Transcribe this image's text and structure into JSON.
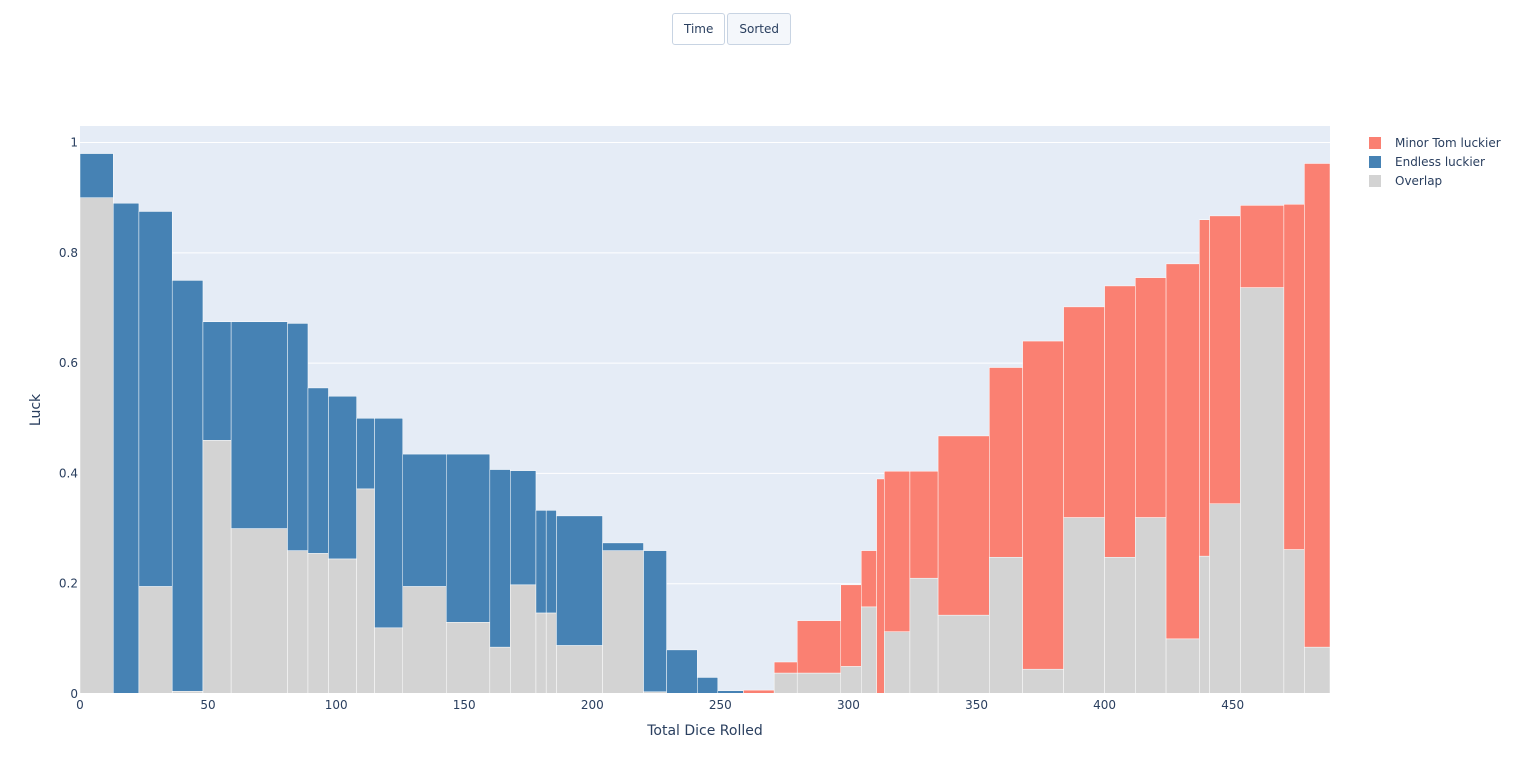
{
  "buttons": {
    "time": "Time",
    "sorted": "Sorted",
    "active": "sorted"
  },
  "colors": {
    "minor": "#fa8072",
    "endless": "#4682b4",
    "overlap": "#d3d3d3",
    "plot_bg": "#e5ecf6",
    "grid": "#ffffff"
  },
  "legend": [
    {
      "label": "Minor Tom luckier",
      "color": "#fa8072"
    },
    {
      "label": "Endless luckier",
      "color": "#4682b4"
    },
    {
      "label": "Overlap",
      "color": "#d3d3d3"
    }
  ],
  "chart_data": {
    "type": "bar",
    "xlabel": "Total Dice Rolled",
    "ylabel": "Luck",
    "xlim": [
      0,
      488
    ],
    "ylim": [
      0,
      1.03
    ],
    "xticks": [
      0,
      50,
      100,
      150,
      200,
      250,
      300,
      350,
      400,
      450
    ],
    "yticks": [
      0,
      0.2,
      0.4,
      0.6,
      0.8,
      1
    ],
    "ytick_labels": [
      "0",
      "0.2",
      "0.4",
      "0.6",
      "0.8",
      "1"
    ],
    "grid": true,
    "legend_position": "top-right",
    "segments": [
      {
        "x0": 0,
        "x1": 13,
        "overlap": 0.9,
        "top": 0.98,
        "winner": "Endless luckier"
      },
      {
        "x0": 13,
        "x1": 23,
        "overlap": 0.0,
        "top": 0.89,
        "winner": "Endless luckier"
      },
      {
        "x0": 23,
        "x1": 36,
        "overlap": 0.195,
        "top": 0.875,
        "winner": "Endless luckier"
      },
      {
        "x0": 36,
        "x1": 48,
        "overlap": 0.005,
        "top": 0.75,
        "winner": "Endless luckier"
      },
      {
        "x0": 48,
        "x1": 59,
        "overlap": 0.46,
        "top": 0.675,
        "winner": "Endless luckier"
      },
      {
        "x0": 59,
        "x1": 81,
        "overlap": 0.3,
        "top": 0.675,
        "winner": "Endless luckier"
      },
      {
        "x0": 81,
        "x1": 89,
        "overlap": 0.26,
        "top": 0.672,
        "winner": "Endless luckier"
      },
      {
        "x0": 89,
        "x1": 97,
        "overlap": 0.255,
        "top": 0.555,
        "winner": "Endless luckier"
      },
      {
        "x0": 97,
        "x1": 108,
        "overlap": 0.245,
        "top": 0.54,
        "winner": "Endless luckier"
      },
      {
        "x0": 108,
        "x1": 115,
        "overlap": 0.372,
        "top": 0.5,
        "winner": "Endless luckier"
      },
      {
        "x0": 115,
        "x1": 126,
        "overlap": 0.12,
        "top": 0.5,
        "winner": "Endless luckier"
      },
      {
        "x0": 126,
        "x1": 143,
        "overlap": 0.195,
        "top": 0.435,
        "winner": "Endless luckier"
      },
      {
        "x0": 143,
        "x1": 160,
        "overlap": 0.13,
        "top": 0.435,
        "winner": "Endless luckier"
      },
      {
        "x0": 160,
        "x1": 168,
        "overlap": 0.085,
        "top": 0.407,
        "winner": "Endless luckier"
      },
      {
        "x0": 168,
        "x1": 178,
        "overlap": 0.198,
        "top": 0.405,
        "winner": "Endless luckier"
      },
      {
        "x0": 178,
        "x1": 182,
        "overlap": 0.147,
        "top": 0.333,
        "winner": "Endless luckier"
      },
      {
        "x0": 182,
        "x1": 186,
        "overlap": 0.147,
        "top": 0.333,
        "winner": "Endless luckier"
      },
      {
        "x0": 186,
        "x1": 204,
        "overlap": 0.088,
        "top": 0.323,
        "winner": "Endless luckier"
      },
      {
        "x0": 204,
        "x1": 220,
        "overlap": 0.26,
        "top": 0.274,
        "winner": "Endless luckier"
      },
      {
        "x0": 220,
        "x1": 229,
        "overlap": 0.004,
        "top": 0.26,
        "winner": "Endless luckier"
      },
      {
        "x0": 229,
        "x1": 241,
        "overlap": 0.0,
        "top": 0.08,
        "winner": "Endless luckier"
      },
      {
        "x0": 241,
        "x1": 249,
        "overlap": 0.0,
        "top": 0.03,
        "winner": "Endless luckier"
      },
      {
        "x0": 249,
        "x1": 259,
        "overlap": 0.0,
        "top": 0.006,
        "winner": "Endless luckier"
      },
      {
        "x0": 259,
        "x1": 271,
        "overlap": 0.0,
        "top": 0.007,
        "winner": "Minor Tom luckier"
      },
      {
        "x0": 271,
        "x1": 280,
        "overlap": 0.038,
        "top": 0.058,
        "winner": "Minor Tom luckier"
      },
      {
        "x0": 280,
        "x1": 297,
        "overlap": 0.038,
        "top": 0.133,
        "winner": "Minor Tom luckier"
      },
      {
        "x0": 297,
        "x1": 305,
        "overlap": 0.05,
        "top": 0.198,
        "winner": "Minor Tom luckier"
      },
      {
        "x0": 305,
        "x1": 311,
        "overlap": 0.158,
        "top": 0.26,
        "winner": "Minor Tom luckier"
      },
      {
        "x0": 311,
        "x1": 314,
        "overlap": 0.0,
        "top": 0.39,
        "winner": "Minor Tom luckier"
      },
      {
        "x0": 314,
        "x1": 324,
        "overlap": 0.113,
        "top": 0.404,
        "winner": "Minor Tom luckier"
      },
      {
        "x0": 324,
        "x1": 335,
        "overlap": 0.21,
        "top": 0.404,
        "winner": "Minor Tom luckier"
      },
      {
        "x0": 335,
        "x1": 355,
        "overlap": 0.143,
        "top": 0.468,
        "winner": "Minor Tom luckier"
      },
      {
        "x0": 355,
        "x1": 368,
        "overlap": 0.248,
        "top": 0.592,
        "winner": "Minor Tom luckier"
      },
      {
        "x0": 368,
        "x1": 384,
        "overlap": 0.045,
        "top": 0.64,
        "winner": "Minor Tom luckier"
      },
      {
        "x0": 384,
        "x1": 400,
        "overlap": 0.32,
        "top": 0.702,
        "winner": "Minor Tom luckier"
      },
      {
        "x0": 400,
        "x1": 412,
        "overlap": 0.248,
        "top": 0.74,
        "winner": "Minor Tom luckier"
      },
      {
        "x0": 412,
        "x1": 424,
        "overlap": 0.32,
        "top": 0.755,
        "winner": "Minor Tom luckier"
      },
      {
        "x0": 424,
        "x1": 437,
        "overlap": 0.1,
        "top": 0.78,
        "winner": "Minor Tom luckier"
      },
      {
        "x0": 437,
        "x1": 441,
        "overlap": 0.25,
        "top": 0.86,
        "winner": "Minor Tom luckier"
      },
      {
        "x0": 441,
        "x1": 453,
        "overlap": 0.345,
        "top": 0.867,
        "winner": "Minor Tom luckier"
      },
      {
        "x0": 453,
        "x1": 470,
        "overlap": 0.737,
        "top": 0.886,
        "winner": "Minor Tom luckier"
      },
      {
        "x0": 470,
        "x1": 478,
        "overlap": 0.262,
        "top": 0.888,
        "winner": "Minor Tom luckier"
      },
      {
        "x0": 478,
        "x1": 488,
        "overlap": 0.085,
        "top": 0.962,
        "winner": "Minor Tom luckier"
      }
    ]
  }
}
